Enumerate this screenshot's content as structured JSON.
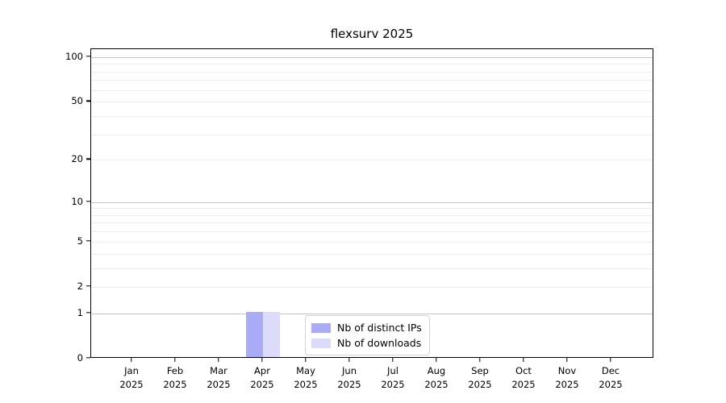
{
  "chart_data": {
    "type": "bar",
    "title": "flexsurv 2025",
    "categories": [
      "Jan",
      "Feb",
      "Mar",
      "Apr",
      "May",
      "Jun",
      "Jul",
      "Aug",
      "Sep",
      "Oct",
      "Nov",
      "Dec"
    ],
    "category_year": "2025",
    "series": [
      {
        "name": "Nb of distinct IPs",
        "color": "#aaaaf6",
        "values": [
          0,
          0,
          0,
          1,
          0,
          0,
          0,
          0,
          0,
          0,
          0,
          0
        ]
      },
      {
        "name": "Nb of downloads",
        "color": "#dcdcfa",
        "values": [
          0,
          0,
          0,
          1,
          0,
          0,
          0,
          0,
          0,
          0,
          0,
          0
        ]
      }
    ],
    "xlabel": "",
    "ylabel": "",
    "y_scale": "log1p",
    "ylim": [
      0,
      113
    ],
    "y_tick_labels": [
      0,
      1,
      2,
      5,
      10,
      20,
      50,
      100
    ],
    "y_major_gridlines": [
      1,
      10,
      100
    ],
    "y_minor_gridlines": [
      2,
      3,
      4,
      5,
      6,
      7,
      8,
      9,
      20,
      30,
      40,
      50,
      60,
      70,
      80,
      90
    ],
    "grid": "horizontal",
    "legend": {
      "position": "bottom-center",
      "entries": [
        "Nb of distinct IPs",
        "Nb of downloads"
      ]
    }
  },
  "colors": {
    "axis": "#000000",
    "major_grid": "#c3c3c3",
    "minor_grid": "#ededed",
    "background": "#ffffff",
    "legend_border": "#d4d4d4"
  }
}
